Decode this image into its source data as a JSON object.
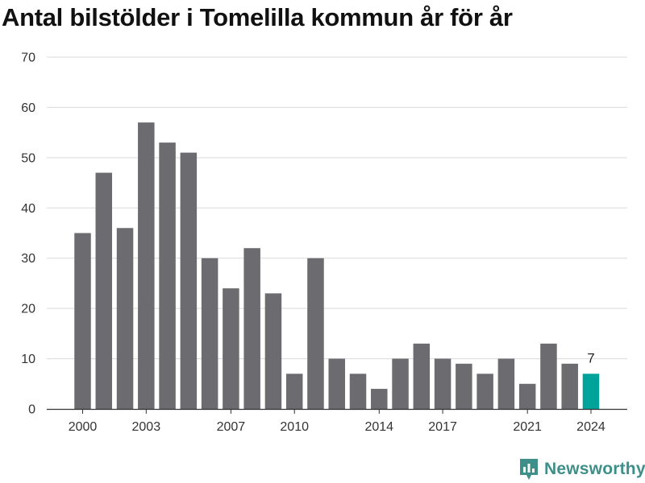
{
  "chart_data": {
    "type": "bar",
    "title": "Antal bilstölder i Tomelilla kommun år för år",
    "xlabel": "",
    "ylabel": "",
    "ylim": [
      0,
      70
    ],
    "yticks": [
      0,
      10,
      20,
      30,
      40,
      50,
      60,
      70
    ],
    "categories": [
      2000,
      2001,
      2002,
      2003,
      2004,
      2005,
      2006,
      2007,
      2008,
      2009,
      2010,
      2011,
      2012,
      2013,
      2014,
      2015,
      2016,
      2017,
      2018,
      2019,
      2020,
      2021,
      2022,
      2023,
      2024
    ],
    "xtick_labels": [
      2000,
      2003,
      2007,
      2010,
      2014,
      2017,
      2021,
      2024
    ],
    "values": [
      35,
      47,
      36,
      57,
      53,
      51,
      30,
      24,
      32,
      23,
      7,
      30,
      10,
      7,
      4,
      10,
      13,
      10,
      9,
      7,
      10,
      5,
      13,
      9,
      7
    ],
    "highlight": {
      "category": 2024,
      "value": 7,
      "label": "7",
      "color": "#00a399"
    },
    "bar_color": "#6c6c70",
    "grid": true
  },
  "brand": {
    "name": "Newsworthy",
    "color": "#3e8f8a"
  }
}
